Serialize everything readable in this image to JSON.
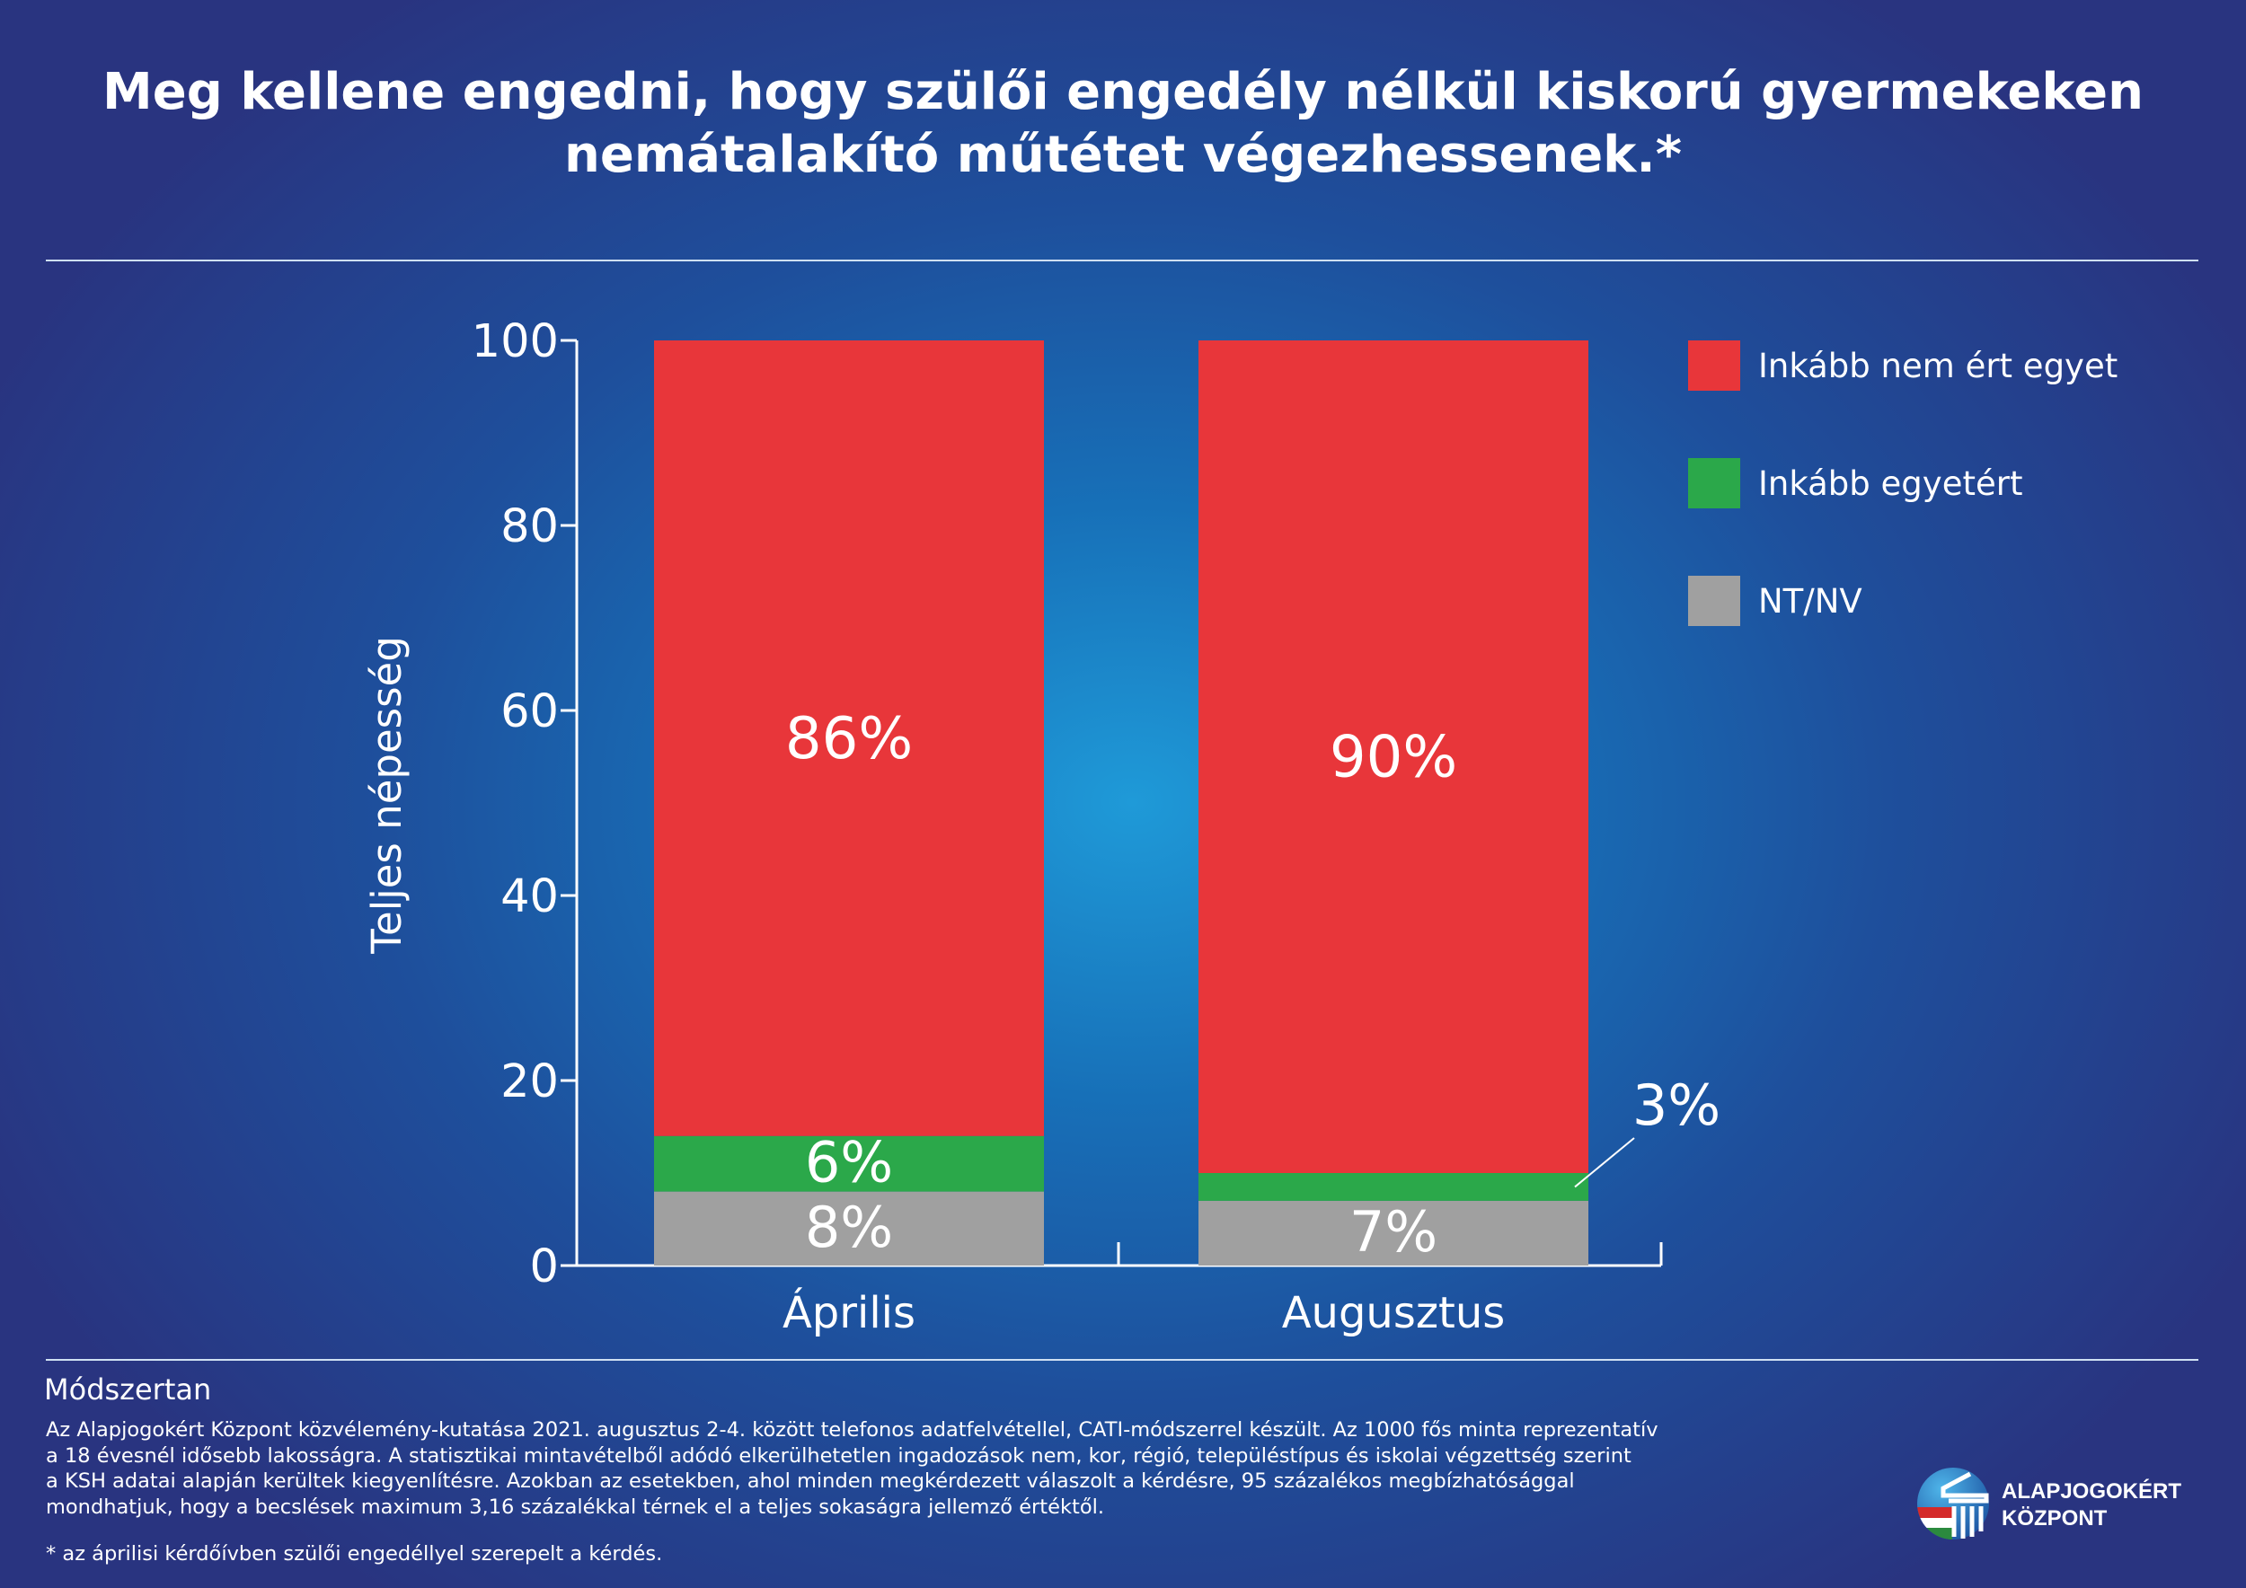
{
  "title_lines": [
    "Meg kellene engedni, hogy szülői engedély nélkül kiskorú gyermekeken",
    "nemátalakító műtétet végezhessenek.*"
  ],
  "chart_data": {
    "type": "bar",
    "stacked": true,
    "categories": [
      "Április",
      "Augusztus"
    ],
    "ylabel": "Teljes népesség",
    "ylim": [
      0,
      100
    ],
    "yticks": [
      0,
      20,
      40,
      60,
      80,
      100
    ],
    "grid": false,
    "legend_position": "right",
    "series": [
      {
        "name": "NT/NV",
        "color": "#a0a0a0",
        "values": [
          8,
          7
        ],
        "labels": [
          "8%",
          "7%"
        ]
      },
      {
        "name": "Inkább egyetért",
        "color": "#2ba84a",
        "values": [
          6,
          3
        ],
        "labels": [
          "6%",
          "3%"
        ]
      },
      {
        "name": "Inkább nem ért egyet",
        "color": "#e8363a",
        "values": [
          86,
          90
        ],
        "labels": [
          "86%",
          "90%"
        ]
      }
    ],
    "legend_order": [
      "Inkább nem ért egyet",
      "Inkább egyetért",
      "NT/NV"
    ]
  },
  "methodology": {
    "title": "Módszertan",
    "body_lines": [
      "Az Alapjogokért Központ közvélemény-kutatása 2021. augusztus 2-4. között telefonos adatfelvétellel, CATI-módszerrel készült. Az 1000 fős minta reprezentatív",
      "a 18 évesnél idősebb lakosságra. A statisztikai mintavételből adódó elkerülhetetlen ingadozások nem, kor, régió, településtípus és iskolai végzettség szerint",
      "a KSH adatai alapján kerültek kiegyenlítésre. Azokban az esetekben, ahol minden megkérdezett válaszolt a kérdésre, 95 százalékos megbízhatósággal",
      "mondhatjuk, hogy a becslések maximum 3,16 százalékkal térnek el a teljes sokaságra jellemző értéktől."
    ],
    "footnote": "* az áprilisi kérdőívben szülői engedéllyel szerepelt a kérdés."
  },
  "logo": {
    "line1": "ALAPJOGOKÉRT",
    "line2": "KÖZPONT"
  }
}
